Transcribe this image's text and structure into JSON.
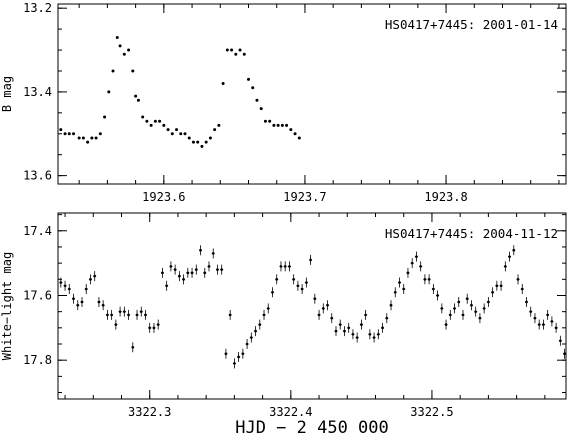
{
  "x_axis_label": "HJD  −  2 450 000",
  "chart_data": [
    {
      "type": "scatter",
      "annotation": "HS0417+7445: 2001-01-14",
      "ylabel": "B mag",
      "xlim": [
        1923.525,
        1923.885
      ],
      "ylim": [
        13.62,
        13.19
      ],
      "xticks": [
        "1923.6",
        "1923.7",
        "1923.8"
      ],
      "xtick_values": [
        1923.6,
        1923.7,
        1923.8
      ],
      "yticks": [
        "13.2",
        "13.4",
        "13.6"
      ],
      "ytick_values": [
        13.2,
        13.4,
        13.6
      ],
      "x": [
        1923.527,
        1923.53,
        1923.533,
        1923.536,
        1923.54,
        1923.543,
        1923.546,
        1923.549,
        1923.552,
        1923.555,
        1923.558,
        1923.561,
        1923.564,
        1923.567,
        1923.569,
        1923.572,
        1923.575,
        1923.578,
        1923.58,
        1923.582,
        1923.585,
        1923.588,
        1923.591,
        1923.594,
        1923.597,
        1923.6,
        1923.603,
        1923.606,
        1923.609,
        1923.612,
        1923.615,
        1923.618,
        1923.621,
        1923.624,
        1923.627,
        1923.63,
        1923.633,
        1923.636,
        1923.639,
        1923.642,
        1923.645,
        1923.648,
        1923.651,
        1923.654,
        1923.657,
        1923.66,
        1923.663,
        1923.666,
        1923.669,
        1923.672,
        1923.675,
        1923.678,
        1923.681,
        1923.684,
        1923.687,
        1923.69,
        1923.693,
        1923.696
      ],
      "y": [
        13.49,
        13.5,
        13.5,
        13.5,
        13.51,
        13.51,
        13.52,
        13.51,
        13.51,
        13.5,
        13.46,
        13.4,
        13.35,
        13.27,
        13.29,
        13.31,
        13.3,
        13.35,
        13.41,
        13.42,
        13.46,
        13.47,
        13.48,
        13.47,
        13.47,
        13.48,
        13.49,
        13.5,
        13.49,
        13.5,
        13.5,
        13.51,
        13.52,
        13.52,
        13.53,
        13.52,
        13.51,
        13.49,
        13.48,
        13.38,
        13.3,
        13.3,
        13.31,
        13.3,
        13.31,
        13.37,
        13.39,
        13.42,
        13.44,
        13.47,
        13.47,
        13.48,
        13.48,
        13.48,
        13.48,
        13.49,
        13.5,
        13.51
      ]
    },
    {
      "type": "scatter",
      "annotation": "HS0417+7445: 2004-11-12",
      "ylabel": "White−light mag",
      "xlim": [
        3322.235,
        3322.595
      ],
      "ylim": [
        17.92,
        17.345
      ],
      "xticks": [
        "3322.3",
        "3322.4",
        "3322.5"
      ],
      "xtick_values": [
        3322.3,
        3322.4,
        3322.5
      ],
      "yticks": [
        "17.4",
        "17.6",
        "17.8"
      ],
      "ytick_values": [
        17.4,
        17.6,
        17.8
      ],
      "x": [
        3322.237,
        3322.24,
        3322.243,
        3322.246,
        3322.249,
        3322.252,
        3322.255,
        3322.258,
        3322.261,
        3322.264,
        3322.267,
        3322.27,
        3322.273,
        3322.276,
        3322.279,
        3322.282,
        3322.285,
        3322.288,
        3322.291,
        3322.294,
        3322.297,
        3322.3,
        3322.303,
        3322.306,
        3322.309,
        3322.312,
        3322.315,
        3322.318,
        3322.321,
        3322.324,
        3322.327,
        3322.33,
        3322.333,
        3322.336,
        3322.339,
        3322.342,
        3322.345,
        3322.348,
        3322.351,
        3322.354,
        3322.357,
        3322.36,
        3322.363,
        3322.366,
        3322.369,
        3322.372,
        3322.375,
        3322.378,
        3322.381,
        3322.384,
        3322.387,
        3322.39,
        3322.393,
        3322.396,
        3322.399,
        3322.402,
        3322.405,
        3322.408,
        3322.411,
        3322.414,
        3322.417,
        3322.42,
        3322.423,
        3322.426,
        3322.429,
        3322.432,
        3322.435,
        3322.438,
        3322.441,
        3322.444,
        3322.447,
        3322.45,
        3322.453,
        3322.456,
        3322.459,
        3322.462,
        3322.465,
        3322.468,
        3322.471,
        3322.474,
        3322.477,
        3322.48,
        3322.483,
        3322.486,
        3322.489,
        3322.492,
        3322.495,
        3322.498,
        3322.501,
        3322.504,
        3322.507,
        3322.51,
        3322.513,
        3322.516,
        3322.519,
        3322.522,
        3322.525,
        3322.528,
        3322.531,
        3322.534,
        3322.537,
        3322.54,
        3322.543,
        3322.546,
        3322.549,
        3322.552,
        3322.555,
        3322.558,
        3322.561,
        3322.564,
        3322.567,
        3322.57,
        3322.573,
        3322.576,
        3322.579,
        3322.582,
        3322.585,
        3322.588,
        3322.591,
        3322.594
      ],
      "y": [
        17.56,
        17.57,
        17.58,
        17.61,
        17.63,
        17.62,
        17.58,
        17.55,
        17.54,
        17.62,
        17.63,
        17.66,
        17.66,
        17.69,
        17.65,
        17.65,
        17.66,
        17.76,
        17.66,
        17.65,
        17.66,
        17.7,
        17.7,
        17.69,
        17.53,
        17.57,
        17.51,
        17.52,
        17.54,
        17.55,
        17.53,
        17.53,
        17.52,
        17.46,
        17.53,
        17.51,
        17.47,
        17.52,
        17.52,
        17.78,
        17.66,
        17.81,
        17.79,
        17.78,
        17.75,
        17.73,
        17.71,
        17.69,
        17.66,
        17.64,
        17.59,
        17.55,
        17.51,
        17.51,
        17.51,
        17.55,
        17.57,
        17.58,
        17.56,
        17.49,
        17.61,
        17.66,
        17.64,
        17.63,
        17.67,
        17.71,
        17.69,
        17.71,
        17.7,
        17.72,
        17.73,
        17.69,
        17.66,
        17.72,
        17.73,
        17.72,
        17.7,
        17.67,
        17.63,
        17.59,
        17.56,
        17.58,
        17.53,
        17.5,
        17.48,
        17.51,
        17.55,
        17.55,
        17.58,
        17.6,
        17.64,
        17.69,
        17.66,
        17.64,
        17.62,
        17.66,
        17.61,
        17.63,
        17.65,
        17.67,
        17.64,
        17.62,
        17.59,
        17.57,
        17.57,
        17.51,
        17.48,
        17.46,
        17.55,
        17.58,
        17.62,
        17.65,
        17.67,
        17.69,
        17.69,
        17.66,
        17.68,
        17.7,
        17.74,
        17.78
      ]
    }
  ]
}
